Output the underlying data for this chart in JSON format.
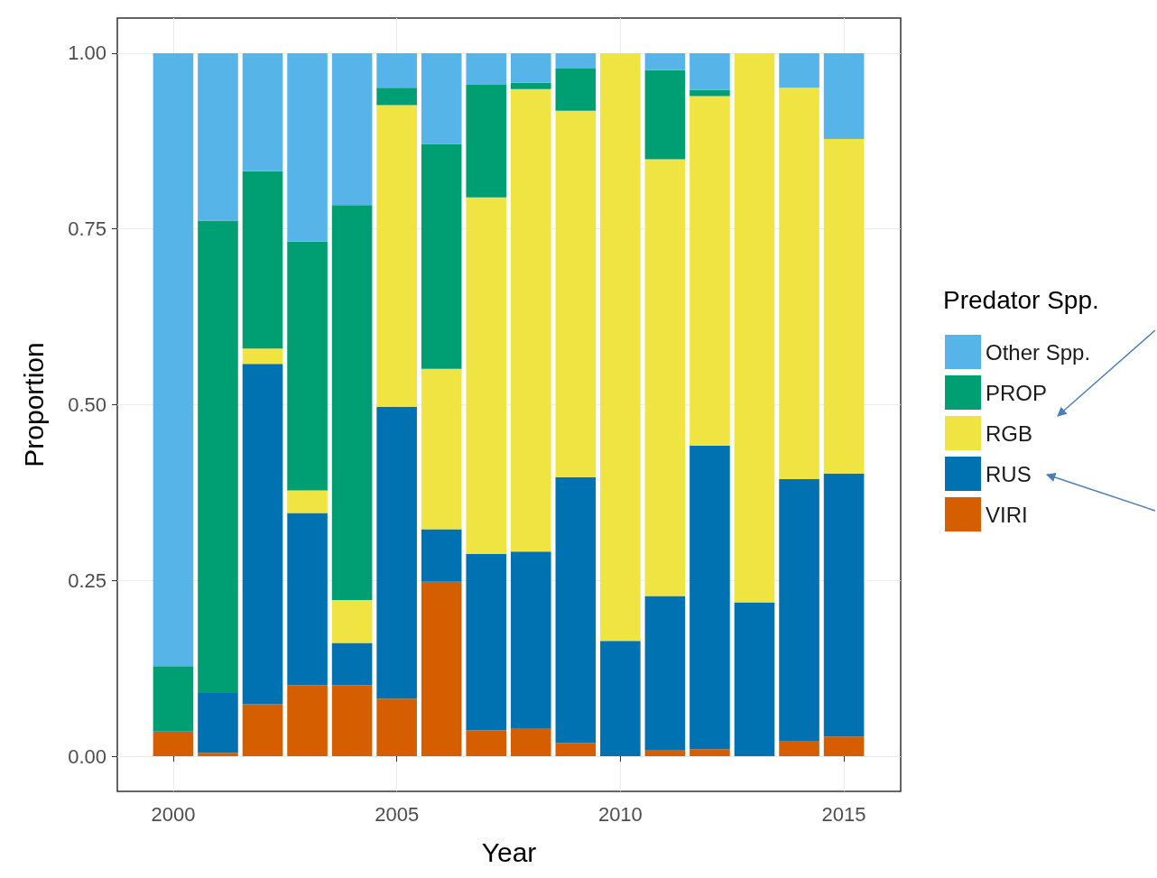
{
  "chart_data": {
    "type": "bar",
    "stacked": true,
    "xlabel": "Year",
    "ylabel": "Proportion",
    "legend_title": "Predator Spp.",
    "legend": "right",
    "grid": true,
    "x": [
      2000,
      2001,
      2002,
      2003,
      2004,
      2005,
      2006,
      2007,
      2008,
      2009,
      2010,
      2011,
      2012,
      2013,
      2014,
      2015
    ],
    "xlim": [
      1998.75,
      2016.27
    ],
    "xticks": [
      2000,
      2005,
      2010,
      2015
    ],
    "ylim": [
      -0.05,
      1.05
    ],
    "yticks": [
      {
        "value": 0,
        "label": "0.00"
      },
      {
        "value": 0.25,
        "label": "0.25"
      },
      {
        "value": 0.5,
        "label": "0.50"
      },
      {
        "value": 0.75,
        "label": "0.75"
      },
      {
        "value": 1,
        "label": "1.00"
      }
    ],
    "series": [
      {
        "name": "VIRI",
        "color": "#d55e00",
        "values": [
          0.035,
          0.005,
          0.074,
          0.101,
          0.101,
          0.082,
          0.248,
          0.037,
          0.04,
          0.019,
          0,
          0.008,
          0.01,
          0,
          0.022,
          0.028
        ]
      },
      {
        "name": "RUS",
        "color": "#0072b2",
        "values": [
          0,
          0.085,
          0.484,
          0.245,
          0.06,
          0.415,
          0.075,
          0.251,
          0.251,
          0.378,
          0.164,
          0.22,
          0.432,
          0.219,
          0.372,
          0.374
        ]
      },
      {
        "name": "RGB",
        "color": "#f0e442",
        "values": [
          0,
          0,
          0.022,
          0.032,
          0.061,
          0.429,
          0.228,
          0.507,
          0.658,
          0.521,
          0.836,
          0.621,
          0.497,
          0.781,
          0.557,
          0.476
        ]
      },
      {
        "name": "PROP",
        "color": "#009e73",
        "values": [
          0.093,
          0.672,
          0.252,
          0.354,
          0.562,
          0.025,
          0.32,
          0.16,
          0.009,
          0.06,
          0,
          0.127,
          0.009,
          0,
          0,
          0
        ]
      },
      {
        "name": "Other Spp.",
        "color": "#56b4e9",
        "values": [
          0.872,
          0.238,
          0.168,
          0.268,
          0.216,
          0.049,
          0.129,
          0.045,
          0.042,
          0.022,
          0,
          0.024,
          0.052,
          0,
          0.049,
          0.122
        ]
      }
    ]
  }
}
